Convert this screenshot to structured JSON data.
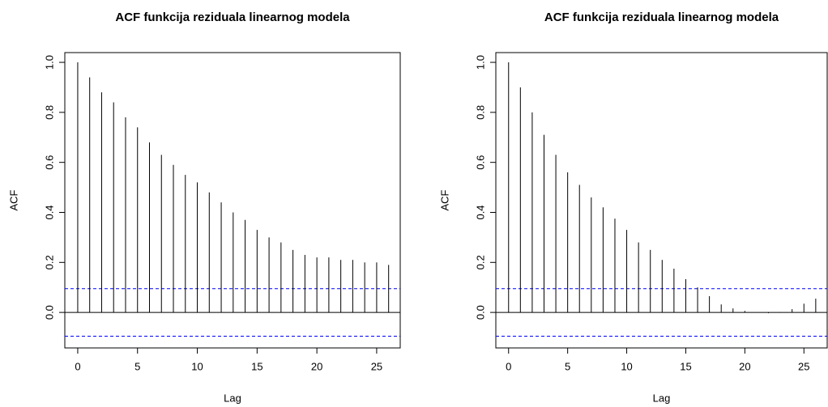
{
  "chart_data": [
    {
      "type": "bar",
      "title": "ACF funkcija reziduala linearnog modela",
      "xlabel": "Lag",
      "ylabel": "ACF",
      "x": [
        0,
        1,
        2,
        3,
        4,
        5,
        6,
        7,
        8,
        9,
        10,
        11,
        12,
        13,
        14,
        15,
        16,
        17,
        18,
        19,
        20,
        21,
        22,
        23,
        24,
        25,
        26
      ],
      "values": [
        1.0,
        0.94,
        0.88,
        0.84,
        0.78,
        0.74,
        0.68,
        0.63,
        0.59,
        0.55,
        0.52,
        0.48,
        0.44,
        0.4,
        0.37,
        0.33,
        0.3,
        0.28,
        0.25,
        0.23,
        0.22,
        0.22,
        0.21,
        0.21,
        0.2,
        0.2,
        0.19
      ],
      "color": "#000000",
      "xlim": [
        -1.08,
        26.97
      ],
      "ylim": [
        -0.142,
        1.039
      ],
      "xticks": [
        0,
        5,
        10,
        15,
        20,
        25
      ],
      "yticks": [
        {
          "value": 0,
          "label": "0.0"
        },
        0.2,
        0.4,
        0.6,
        0.8,
        {
          "value": 1,
          "label": "1.0"
        }
      ],
      "ci_lines": [
        0.095,
        -0.095
      ],
      "ci_color": "#0000ff"
    },
    {
      "type": "bar",
      "title": "ACF funkcija reziduala linearnog modela",
      "xlabel": "Lag",
      "ylabel": "ACF",
      "x": [
        0,
        1,
        2,
        3,
        4,
        5,
        6,
        7,
        8,
        9,
        10,
        11,
        12,
        13,
        14,
        15,
        16,
        17,
        18,
        19,
        20,
        21,
        22,
        23,
        24,
        25,
        26
      ],
      "values": [
        1.0,
        0.9,
        0.8,
        0.71,
        0.63,
        0.56,
        0.51,
        0.46,
        0.42,
        0.375,
        0.33,
        0.28,
        0.25,
        0.21,
        0.175,
        0.133,
        0.1,
        0.065,
        0.032,
        0.016,
        0.006,
        0.0,
        -0.003,
        0.001,
        0.013,
        0.035,
        0.055
      ],
      "color": "#000000",
      "xlim": [
        -1.08,
        26.97
      ],
      "ylim": [
        -0.142,
        1.039
      ],
      "xticks": [
        0,
        5,
        10,
        15,
        20,
        25
      ],
      "yticks": [
        {
          "value": 0,
          "label": "0.0"
        },
        0.2,
        0.4,
        0.6,
        0.8,
        {
          "value": 1,
          "label": "1.0"
        }
      ],
      "ci_lines": [
        0.095,
        -0.095
      ],
      "ci_color": "#0000ff"
    }
  ]
}
